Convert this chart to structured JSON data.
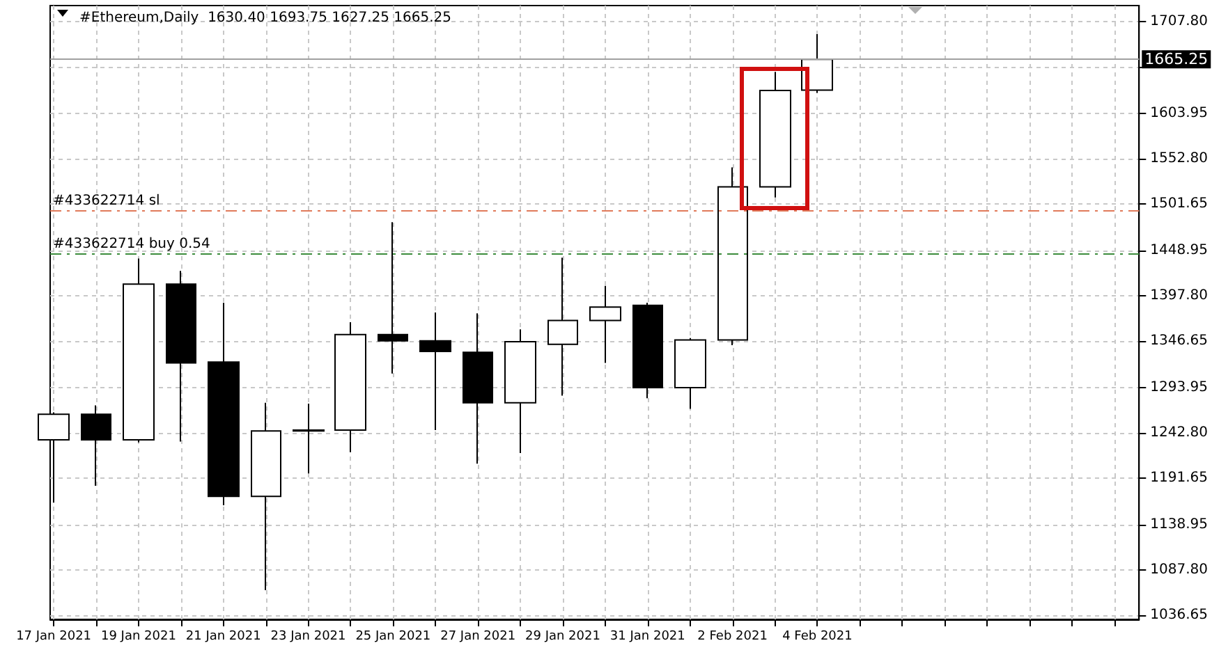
{
  "chart_data": {
    "type": "candlestick",
    "title": "#Ethereum,Daily  1630.40 1693.75 1627.25 1665.25",
    "x": [
      "2021-01-17",
      "2021-01-18",
      "2021-01-19",
      "2021-01-20",
      "2021-01-21",
      "2021-01-22",
      "2021-01-23",
      "2021-01-24",
      "2021-01-25",
      "2021-01-26",
      "2021-01-27",
      "2021-01-28",
      "2021-01-29",
      "2021-01-30",
      "2021-01-31",
      "2021-02-01",
      "2021-02-02",
      "2021-02-03",
      "2021-02-04"
    ],
    "ohlc": [
      [
        1235,
        1266,
        1164,
        1264
      ],
      [
        1264,
        1274,
        1183,
        1235
      ],
      [
        1235,
        1440,
        1232,
        1411
      ],
      [
        1411,
        1426,
        1233,
        1322
      ],
      [
        1323,
        1390,
        1161,
        1171
      ],
      [
        1171,
        1277,
        1065,
        1245
      ],
      [
        1245,
        1276,
        1197,
        1246
      ],
      [
        1246,
        1368,
        1221,
        1354
      ],
      [
        1354,
        1481,
        1310,
        1347
      ],
      [
        1347,
        1379,
        1246,
        1335
      ],
      [
        1334,
        1378,
        1208,
        1277
      ],
      [
        1277,
        1360,
        1220,
        1346
      ],
      [
        1343,
        1441,
        1285,
        1370
      ],
      [
        1370,
        1409,
        1322,
        1385
      ],
      [
        1387,
        1390,
        1282,
        1294
      ],
      [
        1294,
        1350,
        1270,
        1348
      ],
      [
        1348,
        1543,
        1342,
        1521
      ],
      [
        1521,
        1651,
        1509,
        1630
      ],
      [
        1630.4,
        1693.75,
        1627.25,
        1665.25
      ]
    ],
    "xlim": [
      "2021-01-16T22:00",
      "2021-02-11T14:00"
    ],
    "xticks": [
      {
        "value": "2021-01-17",
        "label": "17 Jan 2021"
      },
      {
        "value": "2021-01-18",
        "label": null
      },
      {
        "value": "2021-01-19",
        "label": "19 Jan 2021"
      },
      {
        "value": "2021-01-20",
        "label": null
      },
      {
        "value": "2021-01-21",
        "label": "21 Jan 2021"
      },
      {
        "value": "2021-01-22",
        "label": null
      },
      {
        "value": "2021-01-23",
        "label": "23 Jan 2021"
      },
      {
        "value": "2021-01-24",
        "label": null
      },
      {
        "value": "2021-01-25",
        "label": "25 Jan 2021"
      },
      {
        "value": "2021-01-26",
        "label": null
      },
      {
        "value": "2021-01-27",
        "label": "27 Jan 2021"
      },
      {
        "value": "2021-01-28",
        "label": null
      },
      {
        "value": "2021-01-29",
        "label": "29 Jan 2021"
      },
      {
        "value": "2021-01-30",
        "label": null
      },
      {
        "value": "2021-01-31",
        "label": "31 Jan 2021"
      },
      {
        "value": "2021-02-01",
        "label": null
      },
      {
        "value": "2021-02-02",
        "label": "2 Feb 2021"
      },
      {
        "value": "2021-02-03",
        "label": null
      },
      {
        "value": "2021-02-04",
        "label": "4 Feb 2021"
      },
      {
        "value": "2021-02-05",
        "label": null
      },
      {
        "value": "2021-02-06",
        "label": null
      },
      {
        "value": "2021-02-07",
        "label": null
      },
      {
        "value": "2021-02-08",
        "label": null
      },
      {
        "value": "2021-02-09",
        "label": null
      },
      {
        "value": "2021-02-10",
        "label": null
      },
      {
        "value": "2021-02-11",
        "label": null
      }
    ],
    "ylim": [
      1032,
      1726
    ],
    "yticks": [
      {
        "value": 1036.65,
        "label": "1036.65"
      },
      {
        "value": 1087.8,
        "label": "1087.80"
      },
      {
        "value": 1138.95,
        "label": "1138.95"
      },
      {
        "value": 1191.65,
        "label": "1191.65"
      },
      {
        "value": 1242.8,
        "label": "1242.80"
      },
      {
        "value": 1293.95,
        "label": "1293.95"
      },
      {
        "value": 1346.65,
        "label": "1346.65"
      },
      {
        "value": 1397.8,
        "label": "1397.80"
      },
      {
        "value": 1448.95,
        "label": "1448.95"
      },
      {
        "value": 1501.65,
        "label": "1501.65"
      },
      {
        "value": 1552.8,
        "label": "1552.80"
      },
      {
        "value": 1603.95,
        "label": "1603.95"
      },
      {
        "value": 1656.65,
        "label": null
      },
      {
        "value": 1707.8,
        "label": "1707.80"
      }
    ],
    "ref_lines": [
      {
        "axis": "y",
        "value": 1494,
        "label": "#433622714 sl",
        "color": "#e07a5a",
        "line_style": "dashed"
      },
      {
        "axis": "y",
        "value": 1445,
        "label": "#433622714 buy 0.54",
        "color": "#3c8c3c",
        "line_style": "dashed"
      },
      {
        "axis": "y",
        "value": 1665.25,
        "label": "1665.25",
        "color": "#a0a0a0",
        "line_style": "solid"
      }
    ],
    "grid": true
  }
}
